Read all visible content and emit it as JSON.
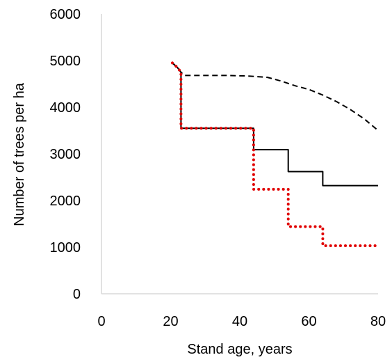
{
  "chart_data": {
    "type": "line",
    "title": "",
    "xlabel": "Stand age, years",
    "ylabel": "Number of trees per ha",
    "xlim": [
      0,
      80
    ],
    "ylim": [
      0,
      6000
    ],
    "xticks": [
      0,
      20,
      40,
      60,
      80
    ],
    "yticks": [
      0,
      1000,
      2000,
      3000,
      4000,
      5000,
      6000
    ],
    "grid": false,
    "legend": "none",
    "series": [
      {
        "style": "dashed",
        "color": "#000000",
        "x": [
          20.5,
          22,
          23,
          24,
          30,
          36,
          42,
          48,
          52,
          56,
          60,
          64,
          68,
          72,
          76,
          80
        ],
        "y": [
          4950,
          4850,
          4750,
          4680,
          4680,
          4680,
          4670,
          4640,
          4560,
          4460,
          4380,
          4260,
          4120,
          3950,
          3750,
          3500
        ]
      },
      {
        "style": "solid",
        "color": "#000000",
        "x": [
          20.5,
          22,
          23,
          23,
          44,
          44,
          54,
          54,
          64,
          64,
          80
        ],
        "y": [
          4950,
          4850,
          4750,
          3550,
          3550,
          3090,
          3090,
          2620,
          2620,
          2320,
          2320
        ]
      },
      {
        "style": "dotted",
        "color": "#e00000",
        "x": [
          20.5,
          22,
          23,
          23,
          44,
          44,
          54,
          54,
          64,
          64,
          80
        ],
        "y": [
          4950,
          4850,
          4750,
          3550,
          3550,
          2240,
          2240,
          1440,
          1440,
          1030,
          1030
        ]
      }
    ]
  }
}
